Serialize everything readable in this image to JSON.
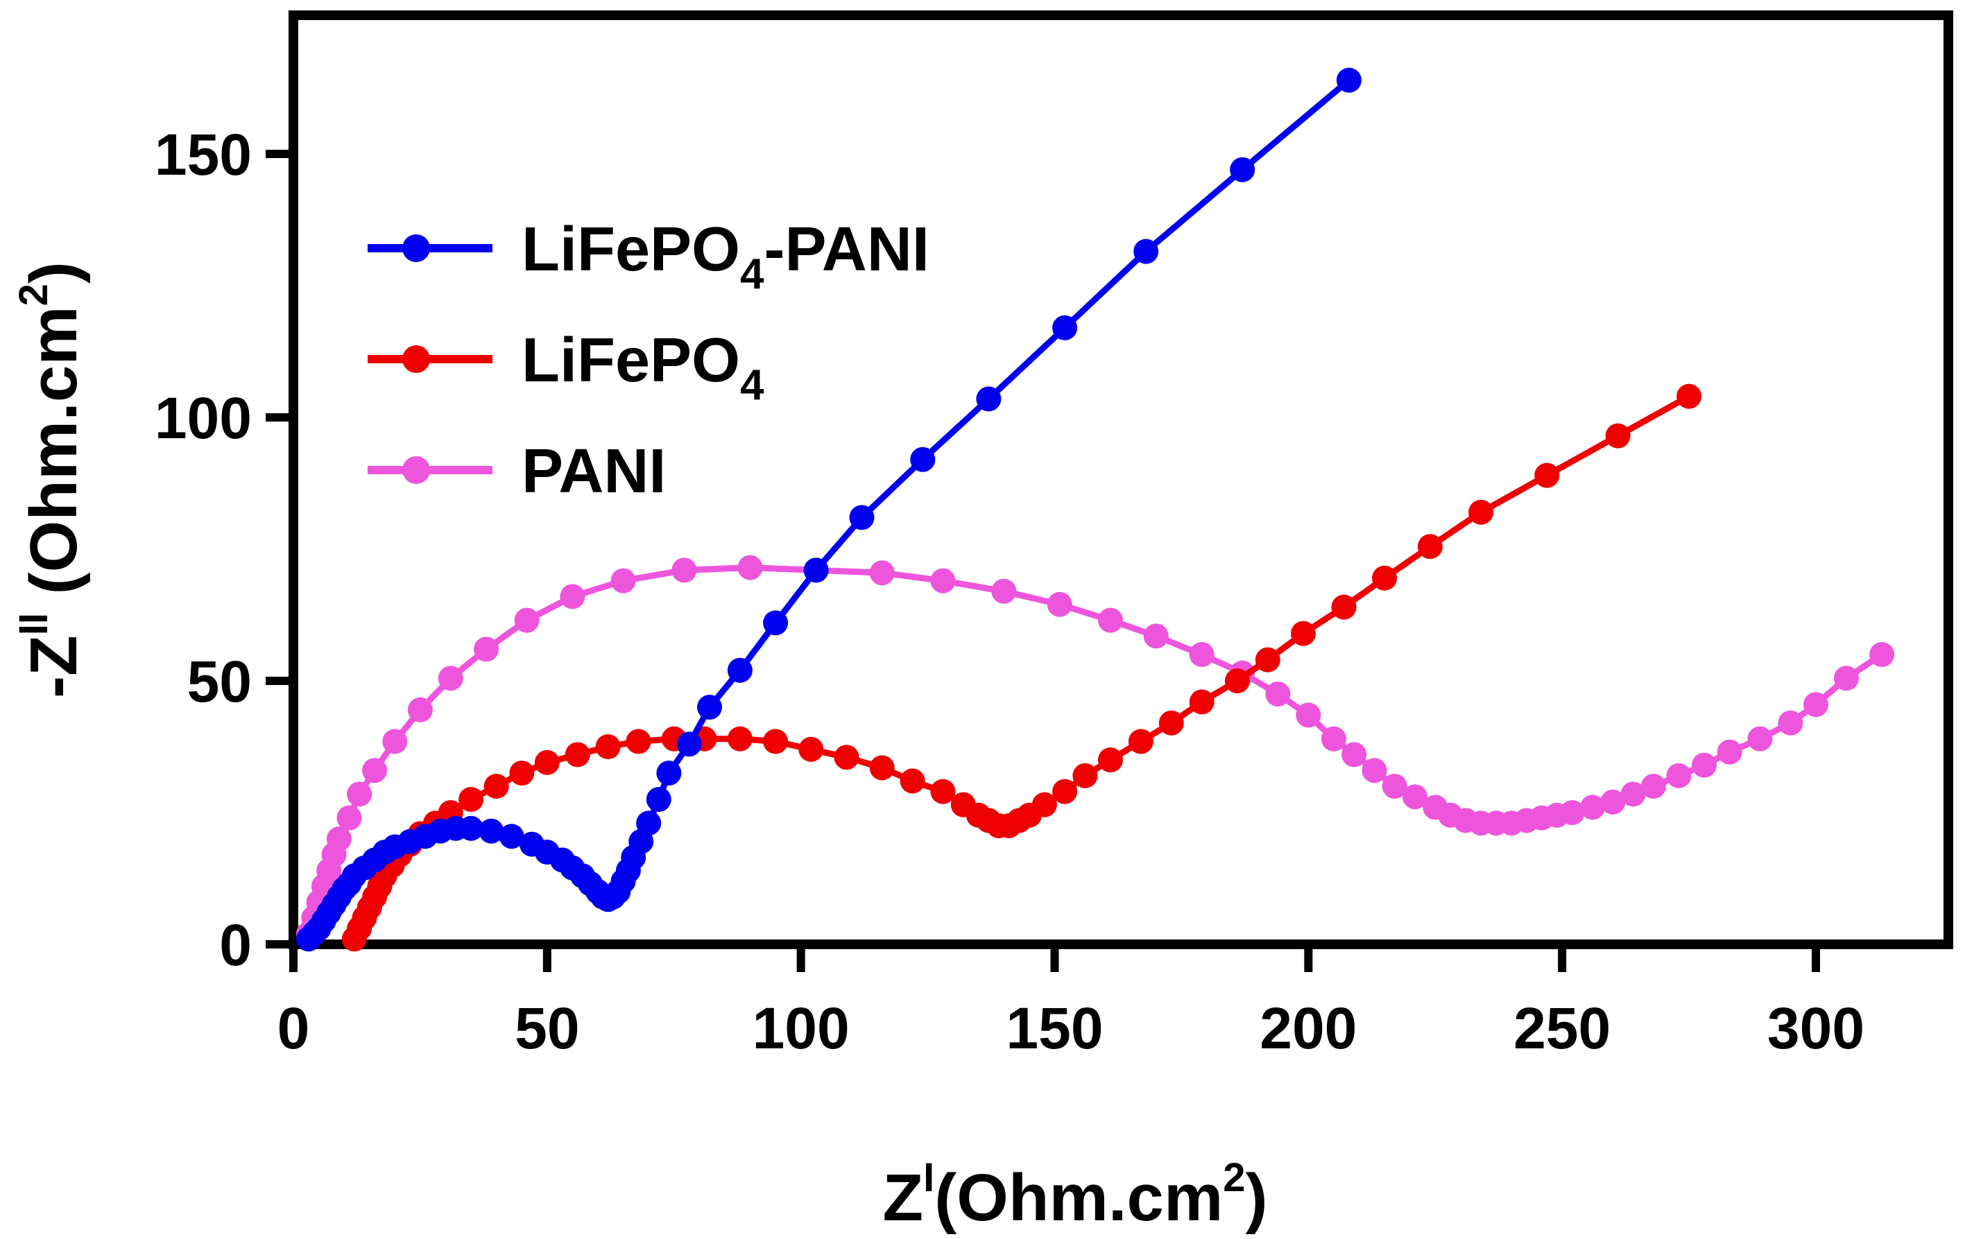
{
  "chart_data": {
    "type": "scatter",
    "title": "",
    "xlabel": {
      "base": "Z",
      "sup": "I",
      "unit": "(Ohm.cm",
      "unit_sup": "2",
      "unit_close": ")"
    },
    "ylabel": {
      "base": "-Z",
      "sup": "II",
      "unit": " (Ohm.cm",
      "unit_sup": "2",
      "unit_close": ")"
    },
    "xlim": [
      0,
      325
    ],
    "ylim": [
      0,
      175
    ],
    "xticks": [
      0,
      50,
      100,
      150,
      200,
      250,
      300
    ],
    "yticks": [
      0,
      50,
      100,
      150
    ],
    "legend_position": "top-left",
    "series": [
      {
        "name": "LiFePO4-PANI",
        "label_main": "LiFePO",
        "label_sub": "4",
        "label_tail": "-PANI",
        "color": "#0000ee",
        "points": [
          [
            3,
            1
          ],
          [
            4,
            2
          ],
          [
            5,
            3
          ],
          [
            6,
            4.5
          ],
          [
            7,
            6
          ],
          [
            8,
            7.5
          ],
          [
            9,
            9
          ],
          [
            10,
            10.5
          ],
          [
            11,
            11.5
          ],
          [
            12,
            13
          ],
          [
            14,
            14.5
          ],
          [
            16,
            16
          ],
          [
            18,
            17.5
          ],
          [
            20,
            18.5
          ],
          [
            23,
            19.5
          ],
          [
            26,
            20.5
          ],
          [
            29,
            21.5
          ],
          [
            32,
            22
          ],
          [
            35,
            22
          ],
          [
            39,
            21.5
          ],
          [
            43,
            20.5
          ],
          [
            47,
            19
          ],
          [
            50,
            17.5
          ],
          [
            53,
            16
          ],
          [
            55,
            14.5
          ],
          [
            57,
            13
          ],
          [
            58.5,
            11.5
          ],
          [
            60,
            10
          ],
          [
            61,
            9
          ],
          [
            62,
            8.5
          ],
          [
            63,
            9
          ],
          [
            64,
            10
          ],
          [
            65,
            12
          ],
          [
            66,
            14
          ],
          [
            67,
            16.5
          ],
          [
            68.5,
            19.5
          ],
          [
            70,
            23
          ],
          [
            72,
            27.5
          ],
          [
            74,
            32.5
          ],
          [
            78,
            38
          ],
          [
            82,
            45
          ],
          [
            88,
            52
          ],
          [
            95,
            61
          ],
          [
            103,
            71
          ],
          [
            112,
            81
          ],
          [
            124,
            92
          ],
          [
            137,
            103.5
          ],
          [
            152,
            117
          ],
          [
            168,
            131.5
          ],
          [
            187,
            147
          ],
          [
            208,
            164
          ]
        ]
      },
      {
        "name": "LiFePO4",
        "label_main": "LiFePO",
        "label_sub": "4",
        "label_tail": "",
        "color": "#ee0000",
        "points": [
          [
            12,
            1
          ],
          [
            13,
            3
          ],
          [
            14,
            5
          ],
          [
            15,
            7
          ],
          [
            16,
            9
          ],
          [
            17,
            11
          ],
          [
            18,
            13
          ],
          [
            19.5,
            15
          ],
          [
            21,
            17
          ],
          [
            23,
            19
          ],
          [
            25,
            21
          ],
          [
            28,
            23
          ],
          [
            31,
            25
          ],
          [
            35,
            27.5
          ],
          [
            40,
            30
          ],
          [
            45,
            32.5
          ],
          [
            50,
            34.5
          ],
          [
            56,
            36
          ],
          [
            62,
            37.5
          ],
          [
            68,
            38.5
          ],
          [
            75,
            39
          ],
          [
            81,
            39
          ],
          [
            88,
            39
          ],
          [
            95,
            38.5
          ],
          [
            102,
            37
          ],
          [
            109,
            35.5
          ],
          [
            116,
            33.5
          ],
          [
            122,
            31
          ],
          [
            128,
            29
          ],
          [
            132,
            26.5
          ],
          [
            135,
            24.5
          ],
          [
            137,
            23.5
          ],
          [
            139,
            22.5
          ],
          [
            141,
            22.5
          ],
          [
            143,
            23.5
          ],
          [
            145,
            24.5
          ],
          [
            148,
            26.5
          ],
          [
            152,
            29
          ],
          [
            156,
            32
          ],
          [
            161,
            35
          ],
          [
            167,
            38.5
          ],
          [
            173,
            42
          ],
          [
            179,
            46
          ],
          [
            186,
            50
          ],
          [
            192,
            54
          ],
          [
            199,
            59
          ],
          [
            207,
            64
          ],
          [
            215,
            69.5
          ],
          [
            224,
            75.5
          ],
          [
            234,
            82
          ],
          [
            247,
            89
          ],
          [
            261,
            96.5
          ],
          [
            275,
            104
          ]
        ]
      },
      {
        "name": "PANI",
        "label_main": "PANI",
        "label_sub": "",
        "label_tail": "",
        "color": "#ee55dd",
        "points": [
          [
            3,
            2
          ],
          [
            4,
            5
          ],
          [
            5,
            8
          ],
          [
            6,
            11
          ],
          [
            7,
            14
          ],
          [
            8,
            17
          ],
          [
            9,
            20
          ],
          [
            11,
            24
          ],
          [
            13,
            28.5
          ],
          [
            16,
            33
          ],
          [
            20,
            38.5
          ],
          [
            25,
            44.5
          ],
          [
            31,
            50.5
          ],
          [
            38,
            56
          ],
          [
            46,
            61.5
          ],
          [
            55,
            66
          ],
          [
            65,
            69
          ],
          [
            77,
            71
          ],
          [
            90,
            71.5
          ],
          [
            103,
            71
          ],
          [
            116,
            70.5
          ],
          [
            128,
            69
          ],
          [
            140,
            67
          ],
          [
            151,
            64.5
          ],
          [
            161,
            61.5
          ],
          [
            170,
            58.5
          ],
          [
            179,
            55
          ],
          [
            187,
            51.5
          ],
          [
            194,
            47.5
          ],
          [
            200,
            43.5
          ],
          [
            205,
            39
          ],
          [
            209,
            36
          ],
          [
            213,
            33
          ],
          [
            217,
            30
          ],
          [
            221,
            28
          ],
          [
            225,
            26
          ],
          [
            228,
            24.5
          ],
          [
            231,
            23.5
          ],
          [
            234,
            23
          ],
          [
            237,
            23
          ],
          [
            240,
            23
          ],
          [
            243,
            23.5
          ],
          [
            246,
            24
          ],
          [
            249,
            24.5
          ],
          [
            252,
            25
          ],
          [
            256,
            26
          ],
          [
            260,
            27
          ],
          [
            264,
            28.5
          ],
          [
            268,
            30
          ],
          [
            273,
            32
          ],
          [
            278,
            34
          ],
          [
            283,
            36.5
          ],
          [
            289,
            39
          ],
          [
            295,
            42
          ],
          [
            300,
            45.5
          ],
          [
            306,
            50.5
          ],
          [
            313,
            55
          ]
        ]
      }
    ]
  }
}
